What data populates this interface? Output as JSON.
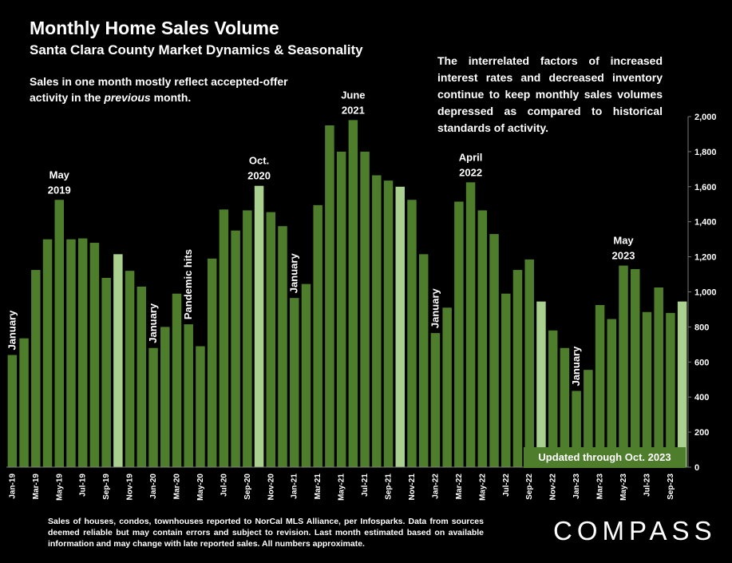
{
  "header": {
    "title": "Monthly Home Sales Volume",
    "subtitle": "Santa Clara County Market Dynamics & Seasonality"
  },
  "notes": {
    "left_part1": "Sales in one month mostly reflect accepted-offer activity in the ",
    "left_emphasis": "previous",
    "left_part2": " month.",
    "right": "The interrelated factors of increased interest rates and decreased inventory continue to keep monthly sales volumes depressed as compared to historical standards of activity."
  },
  "updated_label": "Updated through Oct. 2023",
  "footer": "Sales of houses, condos, townhouses reported to NorCal MLS Alliance, per Infosparks. Data from sources deemed reliable but may contain errors and subject to revision. Last month estimated based on available information and may change with late reported sales. All numbers approximate.",
  "logo": "COMPASS",
  "colors": {
    "bar": "#4e7d2c",
    "highlight": "#a9d08e",
    "background": "#000000",
    "grid": "#7a7a7a"
  },
  "chart_data": {
    "type": "bar",
    "ylim": [
      0,
      2000
    ],
    "yticks": [
      "0",
      "200",
      "400",
      "600",
      "800",
      "1,000",
      "1,200",
      "1,400",
      "1,600",
      "1,800",
      "2,000"
    ],
    "y_axis_position": "right",
    "grid": false,
    "categories": [
      "Jan-19",
      "Feb-19",
      "Mar-19",
      "Apr-19",
      "May-19",
      "Jun-19",
      "Jul-19",
      "Aug-19",
      "Sep-19",
      "Oct-19",
      "Nov-19",
      "Dec-19",
      "Jan-20",
      "Feb-20",
      "Mar-20",
      "Apr-20",
      "May-20",
      "Jun-20",
      "Jul-20",
      "Aug-20",
      "Sep-20",
      "Oct-20",
      "Nov-20",
      "Dec-20",
      "Jan-21",
      "Feb-21",
      "Mar-21",
      "Apr-21",
      "May-21",
      "Jun-21",
      "Jul-21",
      "Aug-21",
      "Sep-21",
      "Oct-21",
      "Nov-21",
      "Dec-21",
      "Jan-22",
      "Feb-22",
      "Mar-22",
      "Apr-22",
      "May-22",
      "Jun-22",
      "Jul-22",
      "Aug-22",
      "Sep-22",
      "Oct-22",
      "Nov-22",
      "Dec-22",
      "Jan-23",
      "Feb-23",
      "Mar-23",
      "Apr-23",
      "May-23",
      "Jun-23",
      "Jul-23",
      "Aug-23",
      "Sep-23",
      "Oct-23"
    ],
    "x_tick_labels": [
      "Jan-19",
      "",
      "Mar-19",
      "",
      "May-19",
      "",
      "Jul-19",
      "",
      "Sep-19",
      "",
      "Nov-19",
      "",
      "Jan-20",
      "",
      "Mar-20",
      "",
      "May-20",
      "",
      "Jul-20",
      "",
      "Sep-20",
      "",
      "Nov-20",
      "",
      "Jan-21",
      "",
      "Mar-21",
      "",
      "May-21",
      "",
      "Jul-21",
      "",
      "Sep-21",
      "",
      "Nov-21",
      "",
      "Jan-22",
      "",
      "Mar-22",
      "",
      "May-22",
      "",
      "Jul-22",
      "",
      "Sep-22",
      "",
      "Nov-22",
      "",
      "Jan-23",
      "",
      "Mar-23",
      "",
      "May-23",
      "",
      "Jul-23",
      "",
      "Sep-23",
      ""
    ],
    "values": [
      640,
      735,
      1125,
      1300,
      1525,
      1300,
      1305,
      1280,
      1080,
      1215,
      1120,
      1030,
      680,
      800,
      990,
      815,
      690,
      1190,
      1470,
      1350,
      1465,
      1605,
      1455,
      1375,
      965,
      1045,
      1495,
      1950,
      1800,
      1980,
      1800,
      1665,
      1635,
      1600,
      1525,
      1215,
      765,
      910,
      1515,
      1625,
      1465,
      1330,
      990,
      1125,
      1185,
      945,
      780,
      680,
      435,
      555,
      925,
      845,
      1150,
      1130,
      885,
      1025,
      880,
      945
    ],
    "highlight": [
      false,
      false,
      false,
      false,
      false,
      false,
      false,
      false,
      false,
      true,
      false,
      false,
      false,
      false,
      false,
      false,
      false,
      false,
      false,
      false,
      false,
      true,
      false,
      false,
      false,
      false,
      false,
      false,
      false,
      false,
      false,
      false,
      false,
      true,
      false,
      false,
      false,
      false,
      false,
      false,
      false,
      false,
      false,
      false,
      false,
      true,
      false,
      false,
      false,
      false,
      false,
      false,
      false,
      false,
      false,
      false,
      false,
      true
    ],
    "annotations": [
      {
        "text": "January",
        "index": 0,
        "rotated": true
      },
      {
        "text": "May\n2019",
        "index": 4,
        "rotated": false
      },
      {
        "text": "January",
        "index": 12,
        "rotated": true
      },
      {
        "text": "Pandemic hits",
        "index": 15,
        "rotated": true
      },
      {
        "text": "Oct.\n2020",
        "index": 21,
        "rotated": false
      },
      {
        "text": "January",
        "index": 24,
        "rotated": true
      },
      {
        "text": "June\n2021",
        "index": 29,
        "rotated": false
      },
      {
        "text": "January",
        "index": 36,
        "rotated": true
      },
      {
        "text": "April\n2022",
        "index": 39,
        "rotated": false
      },
      {
        "text": "January",
        "index": 48,
        "rotated": true
      },
      {
        "text": "May\n2023",
        "index": 52,
        "rotated": false
      }
    ]
  }
}
